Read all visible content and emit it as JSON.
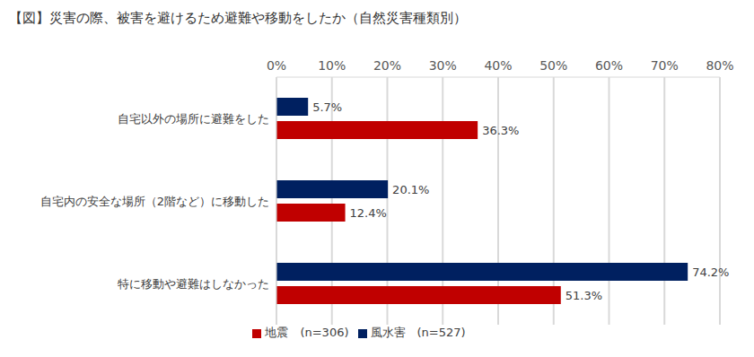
{
  "chart_data": {
    "type": "bar",
    "title": "【図】災害の際、被害を避けるため避難や移動をしたか（自然災害種類別）",
    "orientation": "horizontal",
    "categories": [
      "自宅以外の場所に避難をした",
      "自宅内の安全な場所（2階など）に移動した",
      "特に移動や避難はしなかった"
    ],
    "series": [
      {
        "name": "風水害　(n=527)",
        "color": "#002060",
        "values": [
          5.7,
          20.1,
          74.2
        ],
        "value_labels": [
          "5.7%",
          "20.1%",
          "74.2%"
        ]
      },
      {
        "name": "地震　(n=306)",
        "color": "#c00000",
        "values": [
          36.3,
          12.4,
          51.3
        ],
        "value_labels": [
          "36.3%",
          "12.4%",
          "51.3%"
        ]
      }
    ],
    "xlim": [
      0,
      80
    ],
    "xticks": [
      {
        "value": 0,
        "label": "0%"
      },
      {
        "value": 10,
        "label": "10%"
      },
      {
        "value": 20,
        "label": "20%"
      },
      {
        "value": 30,
        "label": "30%"
      },
      {
        "value": 40,
        "label": "40%"
      },
      {
        "value": 50,
        "label": "50%"
      },
      {
        "value": 60,
        "label": "60%"
      },
      {
        "value": 70,
        "label": "70%"
      },
      {
        "value": 80,
        "label": "80%"
      }
    ],
    "grid": true,
    "data_labels": true,
    "legend": "bottom"
  }
}
